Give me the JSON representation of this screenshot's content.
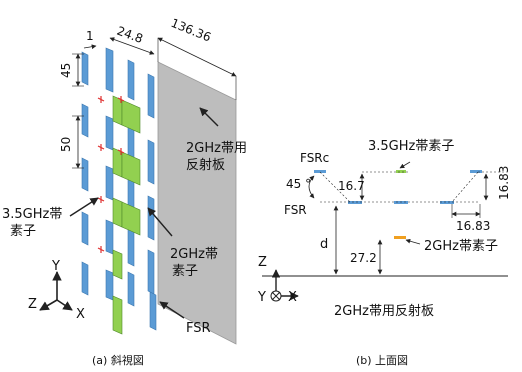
{
  "colors": {
    "reflector_fill": "#bdbdbd",
    "element_35_fill": "#5b9bd5",
    "element_2_fill": "#92d050",
    "feed_mark": "#e03030",
    "element_top_orange": "#f0a020",
    "line": "#222222"
  },
  "left": {
    "caption": "(a) 斜視図",
    "dims": {
      "d1": "1",
      "d24": "24.8",
      "d136": "136.36",
      "d45": "45",
      "d50": "50"
    },
    "labels": {
      "reflector_line1": "2GHz帯用",
      "reflector_line2": "反射板",
      "el35_line1": "3.5GHz帯",
      "el35_line2": "素子",
      "el2_line1": "2GHz帯",
      "el2_line2": "素子",
      "fsr": "FSR"
    },
    "axes": {
      "y": "Y",
      "z": "Z",
      "x": "X"
    }
  },
  "right": {
    "caption": "(b) 上面図",
    "labels": {
      "fsr_top": "FSRc",
      "fsr_left": "FSR",
      "angle": "45 °",
      "el35": "3.5GHz帯素子",
      "el2": "2GHz帯素子",
      "reflector": "2GHz帯用反射板"
    },
    "dims": {
      "d167": "16.7",
      "d1683a": "16.83",
      "d1683b": "16.83",
      "dd": "d",
      "d272": "27.2"
    },
    "axes": {
      "z": "Z",
      "y": "Y",
      "x": "X"
    }
  }
}
